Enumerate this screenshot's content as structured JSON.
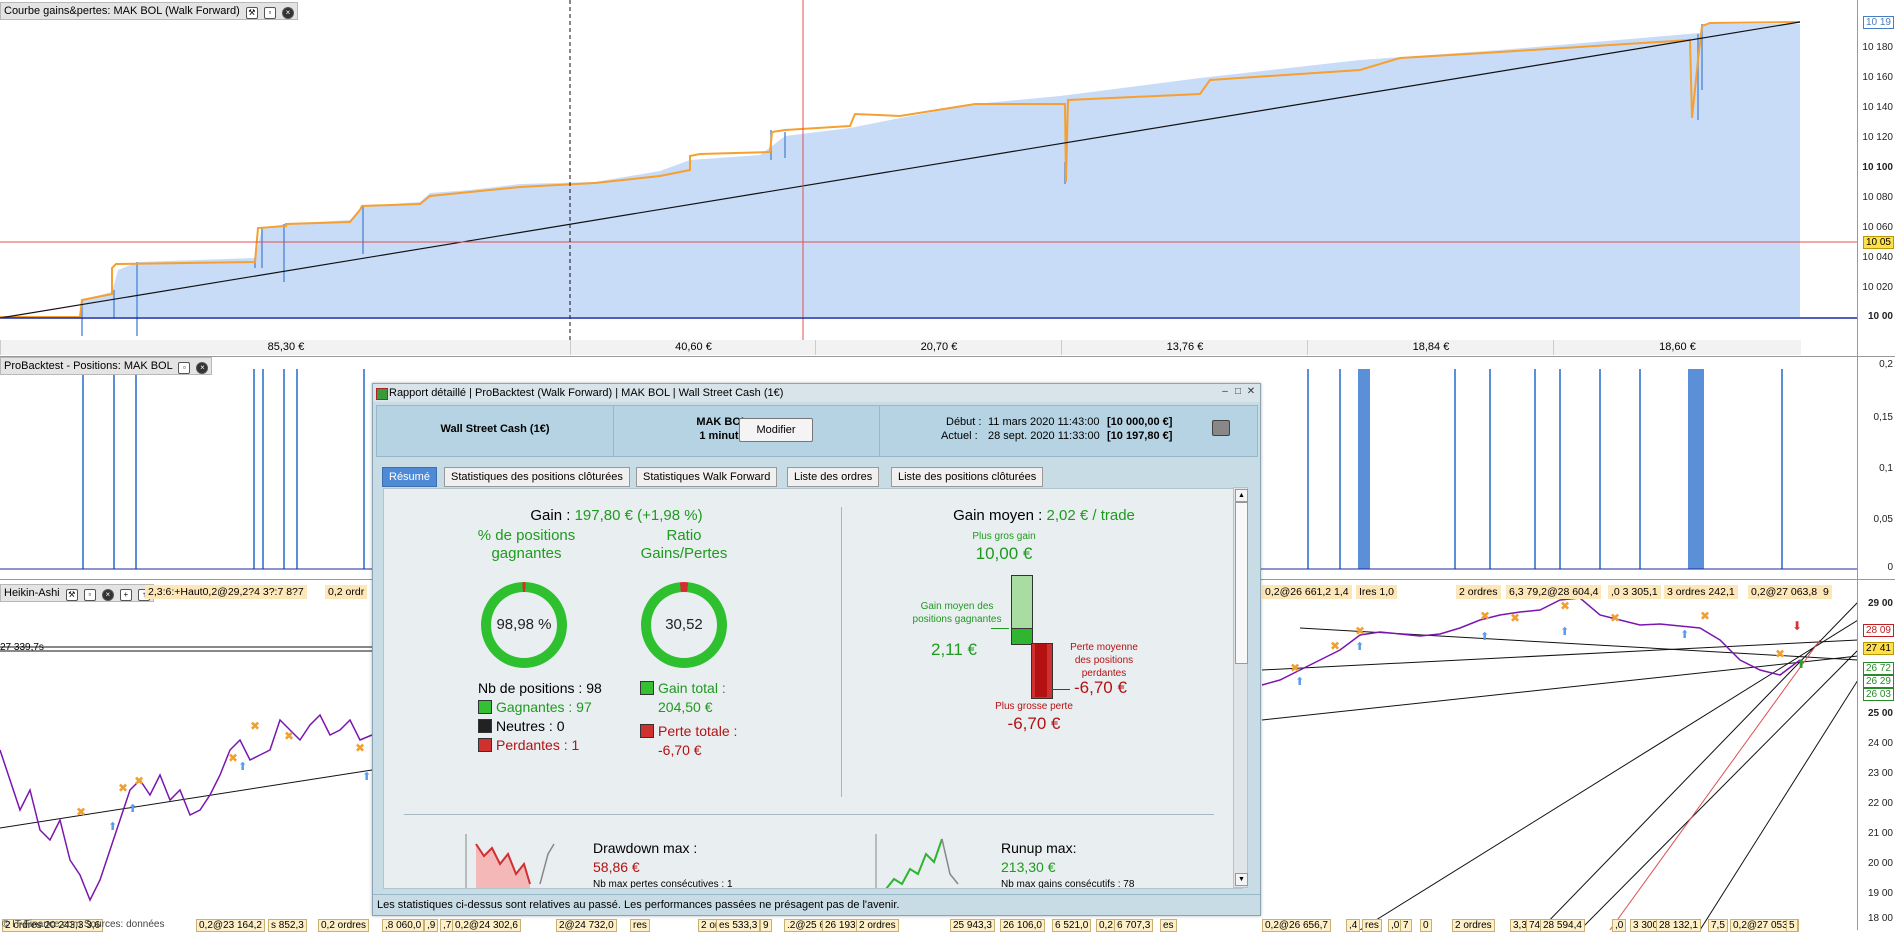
{
  "panels": {
    "equity_title": "Courbe gains&pertes: MAK BOL (Walk Forward)",
    "positions_title": "ProBacktest - Positions: MAK BOL",
    "heikin_title": "Heikin-Ashi",
    "heikin_title_tail": "2,3:6:+Haut0,2@29,2?4 3?:7 8?7",
    "heikin_title_tail2": "0,2 ordr"
  },
  "equity_axis": {
    "ticks": [
      "10 180",
      "10 160",
      "10 140",
      "10 120",
      "10 100",
      "10 080",
      "10 060",
      "10 040",
      "10 020",
      "10 00"
    ],
    "badge_top": "10 19",
    "badge_current": "10 05"
  },
  "positions_axis": {
    "ticks": [
      "0,2",
      "0,15",
      "0,1",
      "0,05",
      "0"
    ]
  },
  "price_axis": {
    "ticks": [
      "29 00",
      "25 00",
      "24 00",
      "23 00",
      "22 00",
      "21 00",
      "20 00",
      "19 00",
      "18 00"
    ],
    "badges": [
      "28 09",
      "27 41",
      "26 72",
      "26 29",
      "26 03"
    ]
  },
  "wf_segments": [
    "85,30 €",
    "40,60 €",
    "20,70 €",
    "13,76 €",
    "18,84 €",
    "18,60 €"
  ],
  "price_left_label": "27 339,7s",
  "order_labels_top": [
    "0,2@26 661,2 1,4",
    "Ires 1,0",
    "2 ordres",
    "6,3 79,2@28 604,4",
    ",0 3 305,1",
    "3 ordres 242,1",
    "0,2@27 063,8",
    "9"
  ],
  "order_labels_bottom": [
    "2 ordres 20 243,3 3,6",
    "0,2@23 164,2",
    "s 852,3",
    "0,2 ordres",
    ",8 060,0",
    ",9 ",
    ",7 dres",
    "0,2@24 302,6",
    "2@24 732,0",
    "res",
    "2 ordres",
    "es 533,3",
    "9",
    ".2@25 672,2",
    "26 193,1",
    "2 ordres",
    "25 943,3",
    "26 106,0",
    "6 521,0",
    "0,2",
    "6 707,3",
    "es",
    "0,2@26 656,7",
    ",4",
    "res",
    ",0",
    "7",
    "0",
    "2 ordres",
    "3,3",
    "74,2",
    "28 594,4",
    ",0",
    "3 300,1",
    "28 132,1",
    "7,5",
    "0,2@27 053,8",
    "5"
  ],
  "copyright": "© IT-Finance.com Sources: données",
  "dialog": {
    "title": "Rapport détaillé",
    "title_parts": [
      "ProBacktest (Walk Forward)",
      "MAK BOL",
      "Wall Street Cash (1€)"
    ],
    "instrument": "Wall Street Cash (1€)",
    "system_name": "MAK BOL",
    "timeframe": "1 minute",
    "modify_label": "Modifier",
    "start_label": "Début :",
    "start_date": "11 mars 2020 11:43:00",
    "start_value": "[10 000,00 €]",
    "current_label": "Actuel :",
    "current_date": "28 sept. 2020 11:33:00",
    "current_value": "[10 197,80 €]",
    "tabs": [
      "Résumé",
      "Statistiques des positions clôturées",
      "Statistiques Walk Forward",
      "Liste des ordres",
      "Liste des positions clôturées"
    ],
    "active_tab": "Résumé",
    "gain_label": "Gain :",
    "gain_value": "197,80 € (+1,98 %)",
    "pct_winning_label": "% de positions gagnantes",
    "pct_winning_value": "98,98 %",
    "pct_winning_fraction": 0.9898,
    "ratio_label": "Ratio Gains/Pertes",
    "ratio_value": "30,52",
    "ratio_fraction": 0.9683,
    "nb_positions_label": "Nb de positions :",
    "nb_positions": "98",
    "winning_label": "Gagnantes :",
    "winning": "97",
    "neutral_label": "Neutres :",
    "neutral": "0",
    "losing_label": "Perdantes :",
    "losing": "1",
    "total_gain_label": "Gain total :",
    "total_gain": "204,50 €",
    "total_loss_label": "Perte totale :",
    "total_loss": "-6,70 €",
    "avg_gain_label": "Gain moyen :",
    "avg_gain": "2,02 € / trade",
    "biggest_gain_label": "Plus gros gain",
    "biggest_gain": "10,00 €",
    "avg_win_label": "Gain moyen des positions gagnantes",
    "avg_win": "2,11 €",
    "avg_loss_label": "Perte moyenne des positions perdantes",
    "avg_loss": "-6,70 €",
    "biggest_loss_label": "Plus grosse perte",
    "biggest_loss": "-6,70 €",
    "drawdown_label": "Drawdown max :",
    "drawdown_value": "58,86 €",
    "drawdown_sub": "Nb max pertes consécutives : 1",
    "runup_label": "Runup max:",
    "runup_value": "213,30 €",
    "runup_sub": "Nb max gains consécutifs : 78",
    "footer": "Les statistiques ci-dessus sont relatives au passé. Les performances passées ne présagent pas de l'avenir."
  },
  "colors": {
    "equity_fill": "#c9dcf7",
    "equity_line": "#f5a030",
    "price_line": "#7a16b0",
    "accent_blue": "#4f8ad6",
    "green": "#1f9a1f",
    "red": "#b41212"
  }
}
